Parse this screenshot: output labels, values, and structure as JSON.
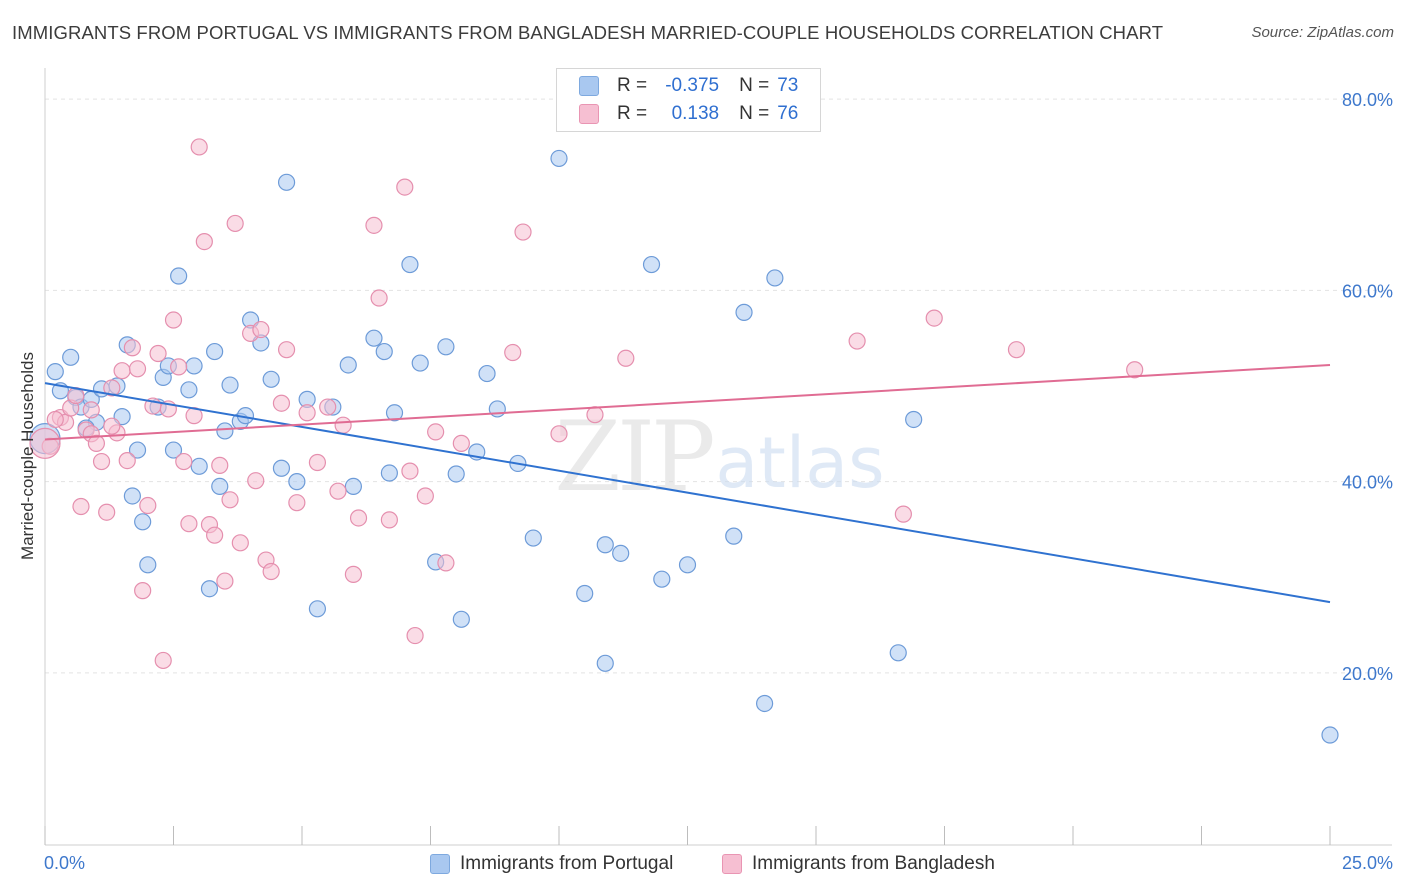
{
  "title": "IMMIGRANTS FROM PORTUGAL VS IMMIGRANTS FROM BANGLADESH MARRIED-COUPLE HOUSEHOLDS CORRELATION CHART",
  "source": "Source: ZipAtlas.com",
  "watermark": {
    "zip": "ZIP",
    "atlas": "atlas"
  },
  "stats": [
    {
      "r_label": "R =",
      "r_value": "-0.375",
      "n_label": "N =",
      "n_value": "73",
      "color": "#a9c8f0",
      "stroke": "#7ea9df"
    },
    {
      "r_label": "R =",
      "r_value": "0.138",
      "n_label": "N =",
      "n_value": "76",
      "color": "#f6bfd2",
      "stroke": "#e995b3"
    }
  ],
  "chart_data": {
    "type": "scatter",
    "title": "IMMIGRANTS FROM PORTUGAL VS IMMIGRANTS FROM BANGLADESH MARRIED-COUPLE HOUSEHOLDS CORRELATION CHART",
    "xlabel": "",
    "ylabel": "Married-couple Households",
    "xlim": [
      0,
      25
    ],
    "ylim": [
      2,
      82
    ],
    "x_tick_labels": [
      "0.0%",
      "25.0%"
    ],
    "y_ticks": [
      20,
      40,
      60,
      80
    ],
    "y_tick_labels": [
      "20.0%",
      "40.0%",
      "60.0%",
      "80.0%"
    ],
    "grid": true,
    "legend_position": "bottom-center",
    "series": [
      {
        "name": "Immigrants from Portugal",
        "color": "#a9c8f0",
        "stroke": "#6d9bd8",
        "trend_color": "#2f72d0",
        "trend": {
          "x": [
            0,
            25
          ],
          "y": [
            50.3,
            27.4
          ]
        },
        "points": [
          [
            0.2,
            51.5
          ],
          [
            0.5,
            53.0
          ],
          [
            0.3,
            49.5
          ],
          [
            0.6,
            48.8
          ],
          [
            0.7,
            47.8
          ],
          [
            0.9,
            48.6
          ],
          [
            1.0,
            46.2
          ],
          [
            0.8,
            45.6
          ],
          [
            1.1,
            49.7
          ],
          [
            1.4,
            50.0
          ],
          [
            1.5,
            46.8
          ],
          [
            1.6,
            54.3
          ],
          [
            1.8,
            43.3
          ],
          [
            1.7,
            38.5
          ],
          [
            1.9,
            35.8
          ],
          [
            2.0,
            31.3
          ],
          [
            2.2,
            47.8
          ],
          [
            2.3,
            50.9
          ],
          [
            2.4,
            52.1
          ],
          [
            2.5,
            43.3
          ],
          [
            2.6,
            61.5
          ],
          [
            2.8,
            49.6
          ],
          [
            2.9,
            52.1
          ],
          [
            3.0,
            41.6
          ],
          [
            3.2,
            28.8
          ],
          [
            3.3,
            53.6
          ],
          [
            3.4,
            39.5
          ],
          [
            3.5,
            45.3
          ],
          [
            3.6,
            50.1
          ],
          [
            3.8,
            46.3
          ],
          [
            3.9,
            46.9
          ],
          [
            4.0,
            56.9
          ],
          [
            4.2,
            54.5
          ],
          [
            4.4,
            50.7
          ],
          [
            4.6,
            41.4
          ],
          [
            4.7,
            71.3
          ],
          [
            4.9,
            40.0
          ],
          [
            5.1,
            48.6
          ],
          [
            5.3,
            26.7
          ],
          [
            5.6,
            47.8
          ],
          [
            5.9,
            52.2
          ],
          [
            6.0,
            39.5
          ],
          [
            6.4,
            55.0
          ],
          [
            6.6,
            53.6
          ],
          [
            6.7,
            40.9
          ],
          [
            6.8,
            47.2
          ],
          [
            7.1,
            62.7
          ],
          [
            7.3,
            52.4
          ],
          [
            7.6,
            31.6
          ],
          [
            7.8,
            54.1
          ],
          [
            8.0,
            40.8
          ],
          [
            8.1,
            25.6
          ],
          [
            8.4,
            43.1
          ],
          [
            8.6,
            51.3
          ],
          [
            8.8,
            47.6
          ],
          [
            9.2,
            41.9
          ],
          [
            9.5,
            34.1
          ],
          [
            10.0,
            73.8
          ],
          [
            10.5,
            28.3
          ],
          [
            10.9,
            21.0
          ],
          [
            10.9,
            33.4
          ],
          [
            11.2,
            32.5
          ],
          [
            11.8,
            62.7
          ],
          [
            12.0,
            29.8
          ],
          [
            12.5,
            31.3
          ],
          [
            13.4,
            34.3
          ],
          [
            13.6,
            57.7
          ],
          [
            14.0,
            16.8
          ],
          [
            14.2,
            61.3
          ],
          [
            16.6,
            22.1
          ],
          [
            16.9,
            46.5
          ],
          [
            25.0,
            13.5
          ],
          [
            0.0,
            44.5
          ]
        ]
      },
      {
        "name": "Immigrants from Bangladesh",
        "color": "#f6bfd2",
        "stroke": "#e58fae",
        "trend_color": "#e06c93",
        "trend": {
          "x": [
            0,
            25
          ],
          "y": [
            44.4,
            52.2
          ]
        },
        "points": [
          [
            0.1,
            43.7
          ],
          [
            0.3,
            46.7
          ],
          [
            0.4,
            46.2
          ],
          [
            0.5,
            47.7
          ],
          [
            0.6,
            49.0
          ],
          [
            0.7,
            37.4
          ],
          [
            0.8,
            45.4
          ],
          [
            0.9,
            45.0
          ],
          [
            1.0,
            44.0
          ],
          [
            1.1,
            42.1
          ],
          [
            1.2,
            36.8
          ],
          [
            1.3,
            49.8
          ],
          [
            1.4,
            45.1
          ],
          [
            1.5,
            51.6
          ],
          [
            1.6,
            42.2
          ],
          [
            1.7,
            54.0
          ],
          [
            1.8,
            51.8
          ],
          [
            1.9,
            28.6
          ],
          [
            2.0,
            37.5
          ],
          [
            2.1,
            47.9
          ],
          [
            2.2,
            53.4
          ],
          [
            2.3,
            21.3
          ],
          [
            2.4,
            47.6
          ],
          [
            2.5,
            56.9
          ],
          [
            2.6,
            52.0
          ],
          [
            2.7,
            42.1
          ],
          [
            2.8,
            35.6
          ],
          [
            2.9,
            46.9
          ],
          [
            3.0,
            75.0
          ],
          [
            3.1,
            65.1
          ],
          [
            3.2,
            35.5
          ],
          [
            3.3,
            34.4
          ],
          [
            3.4,
            41.7
          ],
          [
            3.5,
            29.6
          ],
          [
            3.6,
            38.1
          ],
          [
            3.7,
            67.0
          ],
          [
            3.8,
            33.6
          ],
          [
            4.0,
            55.5
          ],
          [
            4.1,
            40.1
          ],
          [
            4.2,
            55.9
          ],
          [
            4.3,
            31.8
          ],
          [
            4.4,
            30.6
          ],
          [
            4.6,
            48.2
          ],
          [
            4.7,
            53.8
          ],
          [
            4.9,
            37.8
          ],
          [
            5.1,
            47.2
          ],
          [
            5.3,
            42.0
          ],
          [
            5.5,
            47.8
          ],
          [
            5.7,
            39.0
          ],
          [
            5.8,
            45.9
          ],
          [
            6.0,
            30.3
          ],
          [
            6.1,
            36.2
          ],
          [
            6.4,
            66.8
          ],
          [
            6.5,
            59.2
          ],
          [
            6.7,
            36.0
          ],
          [
            7.0,
            70.8
          ],
          [
            7.1,
            41.1
          ],
          [
            7.2,
            23.9
          ],
          [
            7.4,
            38.5
          ],
          [
            7.6,
            45.2
          ],
          [
            7.8,
            31.5
          ],
          [
            8.1,
            44.0
          ],
          [
            9.1,
            53.5
          ],
          [
            9.3,
            66.1
          ],
          [
            10.0,
            45.0
          ],
          [
            10.7,
            47.0
          ],
          [
            11.3,
            52.9
          ],
          [
            15.8,
            54.7
          ],
          [
            16.7,
            36.6
          ],
          [
            17.3,
            57.1
          ],
          [
            18.9,
            53.8
          ],
          [
            21.2,
            51.7
          ],
          [
            0.0,
            44.0
          ],
          [
            0.2,
            46.5
          ],
          [
            0.9,
            47.5
          ],
          [
            1.3,
            45.8
          ]
        ]
      }
    ]
  }
}
